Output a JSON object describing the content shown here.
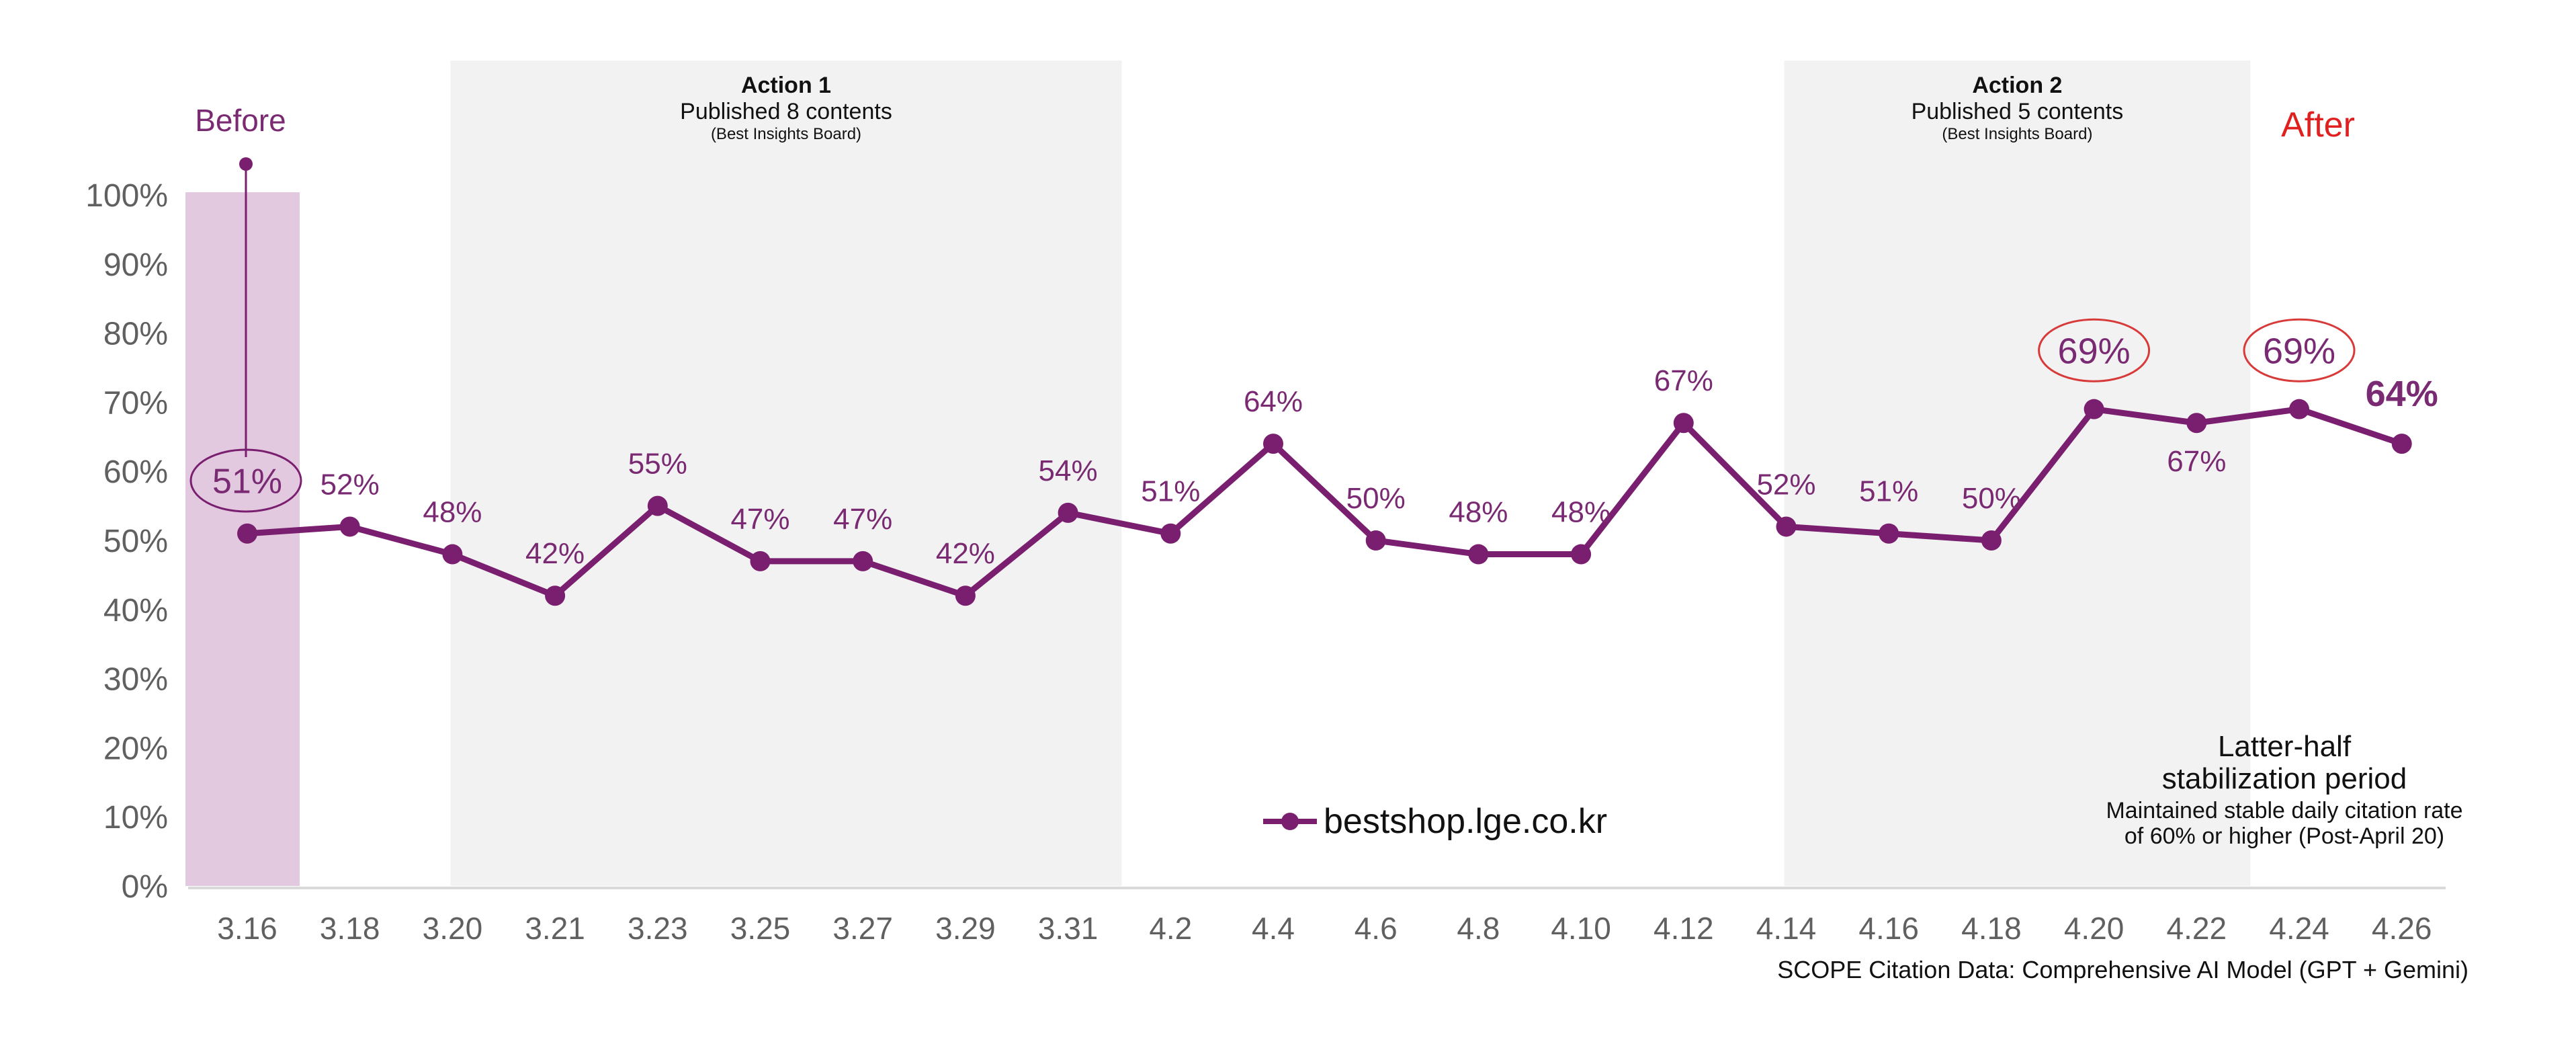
{
  "colors": {
    "line": "#7a1f6f",
    "label": "#7a2a72",
    "axis_text": "#606060",
    "before_band": "#e2c9e0",
    "action_band": "#f2f2f2",
    "highlight_ring": "#d83a3a",
    "after_text": "#e01f1f",
    "note_text": "#111111"
  },
  "chart_data": {
    "type": "line",
    "categories": [
      "3.16",
      "3.18",
      "3.20",
      "3.21",
      "3.23",
      "3.25",
      "3.27",
      "3.29",
      "3.31",
      "4.2",
      "4.4",
      "4.6",
      "4.8",
      "4.10",
      "4.12",
      "4.14",
      "4.16",
      "4.18",
      "4.20",
      "4.22",
      "4.24",
      "4.26"
    ],
    "series": [
      {
        "name": "bestshop.lge.co.kr",
        "values": [
          51,
          52,
          48,
          42,
          55,
          47,
          47,
          42,
          54,
          51,
          64,
          50,
          48,
          48,
          67,
          52,
          51,
          50,
          69,
          67,
          69,
          64
        ]
      }
    ],
    "data_labels": [
      "51%",
      "52%",
      "48%",
      "42%",
      "55%",
      "47%",
      "47%",
      "42%",
      "54%",
      "51%",
      "64%",
      "50%",
      "48%",
      "48%",
      "67%",
      "52%",
      "51%",
      "50%",
      "69%",
      "67%",
      "69%",
      "64%"
    ],
    "label_positions": [
      "above",
      "above",
      "above",
      "above",
      "above",
      "above",
      "above",
      "above",
      "above",
      "above",
      "above",
      "above",
      "above",
      "above",
      "above",
      "above",
      "above",
      "above",
      "above",
      "below",
      "above",
      "above"
    ],
    "highlighted_points": [
      0,
      18,
      20
    ],
    "y_ticks": [
      "0%",
      "10%",
      "20%",
      "30%",
      "40%",
      "50%",
      "60%",
      "70%",
      "80%",
      "90%",
      "100%"
    ],
    "ylim": [
      0,
      100
    ],
    "grid": false,
    "legend": {
      "position": "bottom-center"
    },
    "periods": [
      {
        "kind": "before",
        "label": "Before",
        "start_index": 0,
        "end_index": 0
      },
      {
        "kind": "action",
        "title": "Action 1",
        "subtitle": "Published 8 contents",
        "note": "(Best Insights Board)",
        "start_index": 2,
        "end_index": 8
      },
      {
        "kind": "action",
        "title": "Action 2",
        "subtitle": "Published 5 contents",
        "note": "(Best Insights Board)",
        "start_index": 15,
        "end_index": 19
      },
      {
        "kind": "after",
        "label": "After",
        "start_index": 20,
        "end_index": 21
      }
    ],
    "annotation": {
      "title_line1": "Latter-half",
      "title_line2": "stabilization period",
      "body_line1": "Maintained stable daily citation rate",
      "body_line2": "of 60% or higher (Post-April 20)"
    },
    "source": "SCOPE Citation Data: Comprehensive AI Model (GPT + Gemini)"
  }
}
